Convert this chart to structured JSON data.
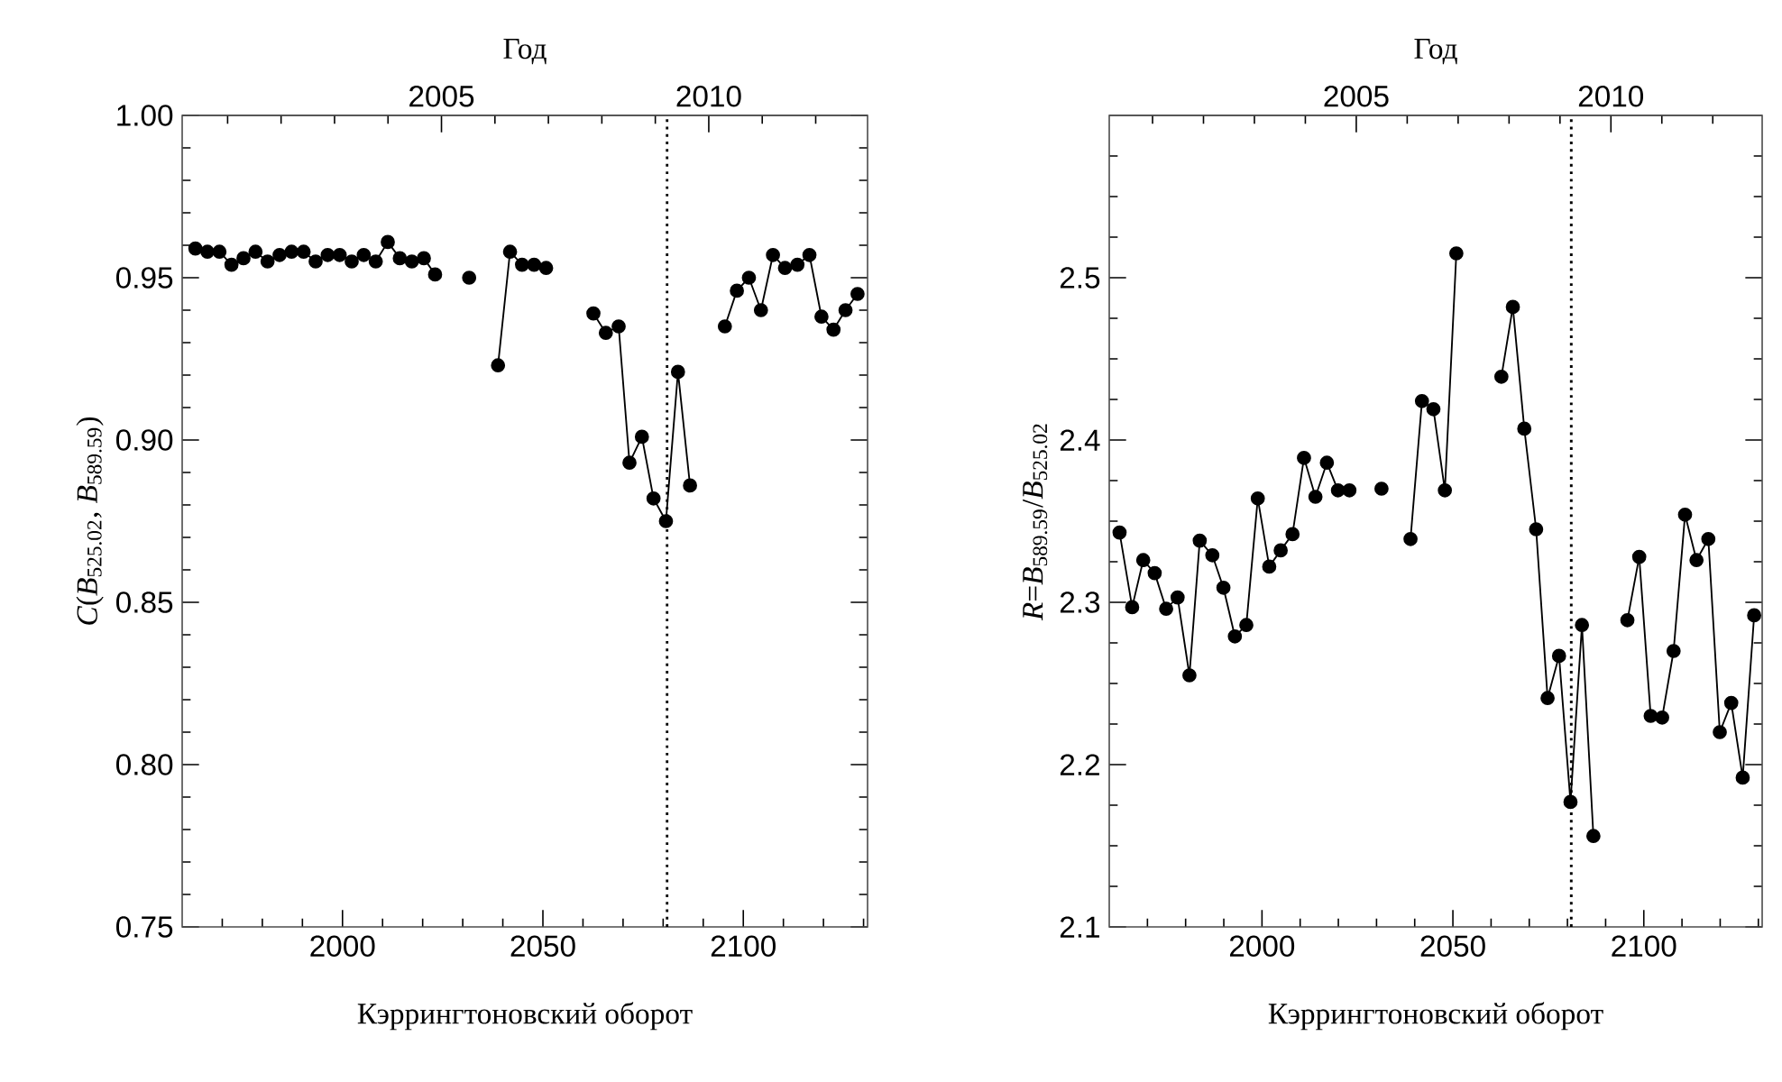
{
  "chart_data": [
    {
      "type": "line",
      "xlabel": "Кэррингтоновский оборот",
      "ylabel": "*C*(*B*$_{525.02}$, *B*$_{589.59}$)",
      "x2label": "Год",
      "xlim": [
        1960,
        2131
      ],
      "ylim": [
        0.75,
        1.0
      ],
      "x2lim": [
        2000.15,
        2012.97
      ],
      "xticks": [
        {
          "value": 1970,
          "label": null
        },
        {
          "value": 1980,
          "label": null
        },
        {
          "value": 1990,
          "label": null
        },
        2000,
        {
          "value": 2010,
          "label": null
        },
        {
          "value": 2020,
          "label": null
        },
        {
          "value": 2030,
          "label": null
        },
        {
          "value": 2040,
          "label": null
        },
        2050,
        {
          "value": 2060,
          "label": null
        },
        {
          "value": 2070,
          "label": null
        },
        {
          "value": 2080,
          "label": null
        },
        {
          "value": 2090,
          "label": null
        },
        2100,
        {
          "value": 2110,
          "label": null
        },
        {
          "value": 2120,
          "label": null
        },
        {
          "value": 2130,
          "label": null
        }
      ],
      "yticks": [
        {
          "value": 0.75,
          "label": "0.75"
        },
        {
          "value": 0.76,
          "label": null
        },
        {
          "value": 0.77,
          "label": null
        },
        {
          "value": 0.78,
          "label": null
        },
        {
          "value": 0.79,
          "label": null
        },
        {
          "value": 0.8,
          "label": "0.80"
        },
        {
          "value": 0.81,
          "label": null
        },
        {
          "value": 0.82,
          "label": null
        },
        {
          "value": 0.83,
          "label": null
        },
        {
          "value": 0.84,
          "label": null
        },
        {
          "value": 0.85,
          "label": "0.85"
        },
        {
          "value": 0.86,
          "label": null
        },
        {
          "value": 0.87,
          "label": null
        },
        {
          "value": 0.88,
          "label": null
        },
        {
          "value": 0.89,
          "label": null
        },
        {
          "value": 0.9,
          "label": "0.90"
        },
        {
          "value": 0.91,
          "label": null
        },
        {
          "value": 0.92,
          "label": null
        },
        {
          "value": 0.93,
          "label": null
        },
        {
          "value": 0.94,
          "label": null
        },
        {
          "value": 0.95,
          "label": "0.95"
        },
        {
          "value": 0.96,
          "label": null
        },
        {
          "value": 0.97,
          "label": null
        },
        {
          "value": 0.98,
          "label": null
        },
        {
          "value": 0.99,
          "label": null
        },
        {
          "value": 1.0,
          "label": "1.00"
        }
      ],
      "x2ticks": [
        {
          "value": 2001,
          "label": null
        },
        {
          "value": 2002,
          "label": null
        },
        {
          "value": 2003,
          "label": null
        },
        {
          "value": 2004,
          "label": null
        },
        2005,
        {
          "value": 2006,
          "label": null
        },
        {
          "value": 2007,
          "label": null
        },
        {
          "value": 2008,
          "label": null
        },
        {
          "value": 2009,
          "label": null
        },
        2010,
        {
          "value": 2011,
          "label": null
        },
        {
          "value": 2012,
          "label": null
        }
      ],
      "marker": "circle",
      "line_style": "solid",
      "ref_lines": [
        {
          "axis": "x",
          "value": 2081,
          "line_style": "dotted"
        }
      ],
      "series": [
        {
          "color": "#000000",
          "x": [
            1963.3,
            1966.3,
            1969.3,
            1972.3,
            1975.3,
            1978.3,
            1981.3,
            1984.3,
            1987.3,
            1990.3,
            1993.3,
            1996.3,
            1999.3,
            2002.3,
            2005.3,
            2008.3,
            2011.3,
            2014.3,
            2017.3,
            2020.3,
            2023.1,
            2027,
            2031.6,
            2035,
            2038.8,
            2041.8,
            2044.8,
            2047.8,
            2050.8,
            2056,
            2062.6,
            2065.7,
            2068.9,
            2071.6,
            2074.7,
            2077.6,
            2080.7,
            2083.7,
            2086.7,
            2091,
            2095.4,
            2098.4,
            2101.4,
            2104.4,
            2107.4,
            2110.4,
            2113.5,
            2116.5,
            2119.5,
            2122.5,
            2125.5,
            2128.5
          ],
          "values": [
            0.959,
            0.958,
            0.958,
            0.954,
            0.956,
            0.958,
            0.955,
            0.957,
            0.958,
            0.958,
            0.955,
            0.957,
            0.957,
            0.955,
            0.957,
            0.955,
            0.961,
            0.956,
            0.955,
            0.956,
            0.951,
            null,
            0.95,
            null,
            0.923,
            0.958,
            0.954,
            0.954,
            0.953,
            null,
            0.939,
            0.933,
            0.935,
            0.893,
            0.901,
            0.882,
            0.875,
            0.921,
            0.886,
            null,
            0.935,
            0.946,
            0.95,
            0.94,
            0.957,
            0.953,
            0.954,
            0.957,
            0.938,
            0.934,
            0.94,
            0.945
          ]
        }
      ]
    },
    {
      "type": "line",
      "xlabel": "Кэррингтоновский оборот",
      "ylabel": "*R*=*B*$_{589.59}$/*B*$_{525.02}$",
      "x2label": "Год",
      "xlim": [
        1960,
        2131
      ],
      "ylim": [
        2.1,
        2.6
      ],
      "x2lim": [
        2000.15,
        2012.97
      ],
      "xticks": [
        {
          "value": 1970,
          "label": null
        },
        {
          "value": 1980,
          "label": null
        },
        {
          "value": 1990,
          "label": null
        },
        2000,
        {
          "value": 2010,
          "label": null
        },
        {
          "value": 2020,
          "label": null
        },
        {
          "value": 2030,
          "label": null
        },
        {
          "value": 2040,
          "label": null
        },
        2050,
        {
          "value": 2060,
          "label": null
        },
        {
          "value": 2070,
          "label": null
        },
        {
          "value": 2080,
          "label": null
        },
        {
          "value": 2090,
          "label": null
        },
        2100,
        {
          "value": 2110,
          "label": null
        },
        {
          "value": 2120,
          "label": null
        },
        {
          "value": 2130,
          "label": null
        }
      ],
      "yticks": [
        2.1,
        {
          "value": 2.125,
          "label": null
        },
        {
          "value": 2.15,
          "label": null
        },
        {
          "value": 2.175,
          "label": null
        },
        2.2,
        {
          "value": 2.225,
          "label": null
        },
        {
          "value": 2.25,
          "label": null
        },
        {
          "value": 2.275,
          "label": null
        },
        2.3,
        {
          "value": 2.325,
          "label": null
        },
        {
          "value": 2.35,
          "label": null
        },
        {
          "value": 2.375,
          "label": null
        },
        2.4,
        {
          "value": 2.425,
          "label": null
        },
        {
          "value": 2.45,
          "label": null
        },
        {
          "value": 2.475,
          "label": null
        },
        2.5,
        {
          "value": 2.525,
          "label": null
        },
        {
          "value": 2.55,
          "label": null
        },
        {
          "value": 2.575,
          "label": null
        }
      ],
      "x2ticks": [
        {
          "value": 2001,
          "label": null
        },
        {
          "value": 2002,
          "label": null
        },
        {
          "value": 2003,
          "label": null
        },
        {
          "value": 2004,
          "label": null
        },
        2005,
        {
          "value": 2006,
          "label": null
        },
        {
          "value": 2007,
          "label": null
        },
        {
          "value": 2008,
          "label": null
        },
        {
          "value": 2009,
          "label": null
        },
        2010,
        {
          "value": 2011,
          "label": null
        },
        {
          "value": 2012,
          "label": null
        }
      ],
      "marker": "circle",
      "line_style": "solid",
      "ref_lines": [
        {
          "axis": "x",
          "value": 2081,
          "line_style": "dotted"
        }
      ],
      "series": [
        {
          "color": "#000000",
          "x": [
            1962.7,
            1966.0,
            1968.9,
            1971.9,
            1974.9,
            1977.9,
            1981.0,
            1983.7,
            1987.0,
            1989.9,
            1992.9,
            1995.9,
            1998.9,
            2001.9,
            2004.9,
            2008.0,
            2011.0,
            2014.0,
            2017.0,
            2019.9,
            2022.9,
            2027,
            2031.3,
            2035,
            2038.9,
            2041.9,
            2044.9,
            2047.9,
            2050.9,
            2056,
            2062.7,
            2065.7,
            2068.7,
            2071.8,
            2074.8,
            2077.8,
            2080.8,
            2083.8,
            2086.8,
            2091,
            2095.7,
            2098.8,
            2101.8,
            2104.8,
            2107.8,
            2110.8,
            2113.8,
            2116.9,
            2119.9,
            2122.9,
            2125.9,
            2128.9
          ],
          "values": [
            2.343,
            2.297,
            2.326,
            2.318,
            2.296,
            2.303,
            2.255,
            2.338,
            2.329,
            2.309,
            2.279,
            2.286,
            2.364,
            2.322,
            2.332,
            2.342,
            2.389,
            2.365,
            2.386,
            2.369,
            2.369,
            null,
            2.37,
            null,
            2.339,
            2.424,
            2.419,
            2.369,
            2.515,
            null,
            2.439,
            2.482,
            2.407,
            2.345,
            2.241,
            2.267,
            2.177,
            2.286,
            2.156,
            null,
            2.289,
            2.328,
            2.23,
            2.229,
            2.27,
            2.354,
            2.326,
            2.339,
            2.22,
            2.238,
            2.192,
            2.292
          ]
        }
      ]
    }
  ]
}
